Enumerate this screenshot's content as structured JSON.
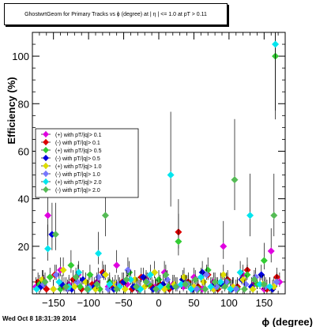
{
  "title": "GhostwrtGeom for Primary Tracks vs ϕ (degree) at |  η | <= 1.0 at pT > 0.11",
  "footer": "Wed Oct  8 18:31:39 2014",
  "chart_data": {
    "type": "scatter",
    "title": "GhostwrtGeom for Primary Tracks vs ϕ (degree) at |  η | <= 1.0 at pT > 0.11",
    "xlabel": "ϕ (degree)",
    "ylabel": "Efficiency (%)",
    "xlim": [
      -180,
      180
    ],
    "ylim": [
      0,
      110
    ],
    "x_ticks": [
      -150,
      -100,
      -50,
      0,
      50,
      100,
      150
    ],
    "y_ticks": [
      20,
      40,
      60,
      80,
      100
    ],
    "legend_position": "center-left",
    "grid": false,
    "series": [
      {
        "name": "(+) with pT/|q|> 0.1",
        "color": "#e000e0",
        "x": [
          -175,
          -165,
          -158,
          -150,
          -140,
          -128,
          -115,
          -100,
          -88,
          -72,
          -60,
          -45,
          -30,
          -18,
          -5,
          8,
          20,
          35,
          50,
          62,
          78,
          92,
          105,
          120,
          135,
          150,
          160,
          172
        ],
        "y": [
          3,
          6,
          33,
          2,
          10,
          4,
          8,
          2,
          5,
          3,
          12,
          4,
          2,
          6,
          3,
          9,
          4,
          3,
          7,
          2,
          5,
          20,
          3,
          8,
          4,
          2,
          18,
          5
        ]
      },
      {
        "name": "(-) with pT/|q|> 0.1",
        "color": "#dd0000",
        "x": [
          -172,
          -160,
          -148,
          -135,
          -122,
          -110,
          -95,
          -80,
          -66,
          -52,
          -38,
          -25,
          -10,
          2,
          15,
          28,
          42,
          56,
          70,
          84,
          98,
          112,
          126,
          140,
          154,
          168
        ],
        "y": [
          5,
          2,
          8,
          3,
          6,
          2,
          4,
          9,
          3,
          5,
          2,
          7,
          3,
          4,
          2,
          26,
          5,
          3,
          8,
          2,
          6,
          3,
          10,
          4,
          2,
          7
        ]
      },
      {
        "name": "(+) with pT/|q|> 0.5",
        "color": "#33cc33",
        "x": [
          -170,
          -155,
          -140,
          -125,
          -112,
          -98,
          -84,
          -70,
          -56,
          -42,
          -28,
          -14,
          0,
          14,
          28,
          42,
          56,
          70,
          84,
          98,
          112,
          126,
          140,
          150,
          158,
          166
        ],
        "y": [
          4,
          7,
          2,
          12,
          3,
          8,
          2,
          5,
          3,
          9,
          2,
          4,
          6,
          3,
          22,
          4,
          2,
          10,
          3,
          5,
          2,
          8,
          4,
          14,
          3,
          100
        ]
      },
      {
        "name": "(-) with pT/|q|> 0.5",
        "color": "#0000dd",
        "x": [
          -168,
          -152,
          -138,
          -124,
          -108,
          -92,
          -78,
          -64,
          -50,
          -36,
          -22,
          -8,
          6,
          20,
          34,
          48,
          62,
          76,
          90,
          104,
          118,
          132,
          146,
          162
        ],
        "y": [
          3,
          25,
          4,
          2,
          6,
          3,
          8,
          2,
          5,
          3,
          7,
          2,
          4,
          3,
          6,
          2,
          9,
          3,
          4,
          2,
          6,
          3,
          8,
          2
        ]
      },
      {
        "name": "(+) with pT/|q|> 1.0",
        "color": "#dddd00",
        "x": [
          -166,
          -150,
          -136,
          -120,
          -104,
          -90,
          -76,
          -62,
          -48,
          -34,
          -20,
          -6,
          8,
          22,
          36,
          50,
          64,
          78,
          92,
          106,
          120,
          134,
          148,
          164
        ],
        "y": [
          6,
          2,
          10,
          3,
          5,
          2,
          8,
          4,
          2,
          6,
          3,
          9,
          2,
          4,
          7,
          3,
          5,
          2,
          8,
          3,
          6,
          2,
          4,
          3
        ]
      },
      {
        "name": "(-) with pT/|q|> 1.0",
        "color": "#7777ff",
        "x": [
          -164,
          -146,
          -130,
          -116,
          -100,
          -86,
          -72,
          -58,
          -44,
          -30,
          -16,
          -2,
          12,
          26,
          40,
          54,
          68,
          82,
          96,
          110,
          124,
          138,
          152,
          168
        ],
        "y": [
          4,
          8,
          2,
          5,
          3,
          7,
          2,
          4,
          10,
          3,
          5,
          2,
          6,
          3,
          4,
          2,
          8,
          3,
          5,
          2,
          4,
          7,
          3,
          5
        ]
      },
      {
        "name": "(+) with pT/|q|> 2.0",
        "color": "#00e5ee",
        "x": [
          -174,
          -158,
          -142,
          -128,
          -114,
          -100,
          -86,
          -70,
          -56,
          -40,
          -26,
          -12,
          2,
          17,
          32,
          46,
          60,
          74,
          88,
          102,
          116,
          130,
          144,
          158,
          166
        ],
        "y": [
          2,
          19,
          5,
          3,
          9,
          2,
          17,
          4,
          3,
          6,
          2,
          8,
          3,
          50,
          4,
          2,
          7,
          3,
          5,
          2,
          9,
          33,
          4,
          3,
          105
        ]
      },
      {
        "name": "(-) with pT/|q|> 2.0",
        "color": "#55bb55",
        "x": [
          -162,
          -147,
          -132,
          -118,
          -102,
          -88,
          -76,
          -60,
          -46,
          -32,
          -18,
          -4,
          10,
          24,
          38,
          52,
          66,
          80,
          94,
          108,
          122,
          136,
          150,
          164
        ],
        "y": [
          5,
          25,
          3,
          7,
          2,
          4,
          33,
          2,
          6,
          3,
          5,
          2,
          8,
          3,
          4,
          6,
          2,
          5,
          3,
          48,
          2,
          6,
          4,
          33
        ]
      }
    ]
  }
}
